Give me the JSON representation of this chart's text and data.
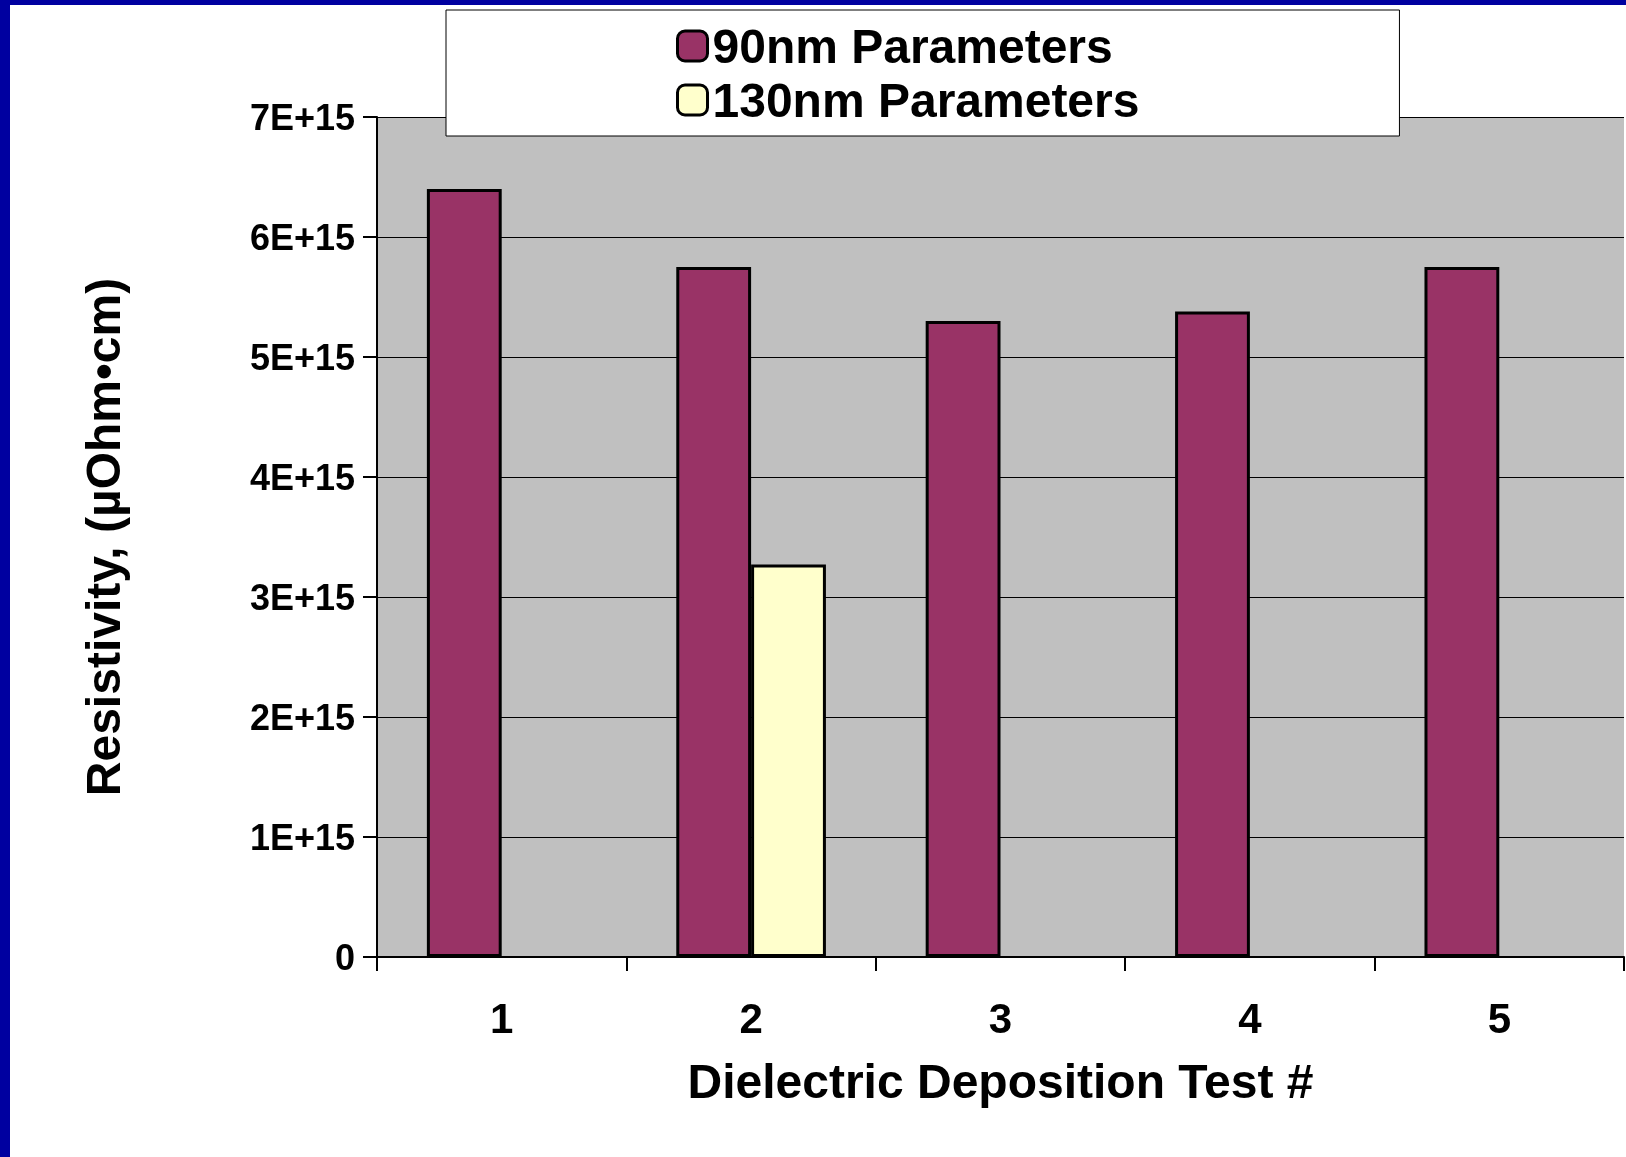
{
  "chart_data": {
    "type": "bar",
    "xlabel": "Dielectric Deposition Test #",
    "ylabel": "Resistivity, (µOhm•cm)",
    "categories": [
      "1",
      "2",
      "3",
      "4",
      "5"
    ],
    "series": [
      {
        "name": "90nm Parameters",
        "color": "#993366",
        "values": [
          6400000000000000.0,
          5750000000000000.0,
          5300000000000000.0,
          5380000000000000.0,
          5750000000000000.0
        ]
      },
      {
        "name": "130nm Parameters",
        "color": "#ffffcc",
        "values": [
          null,
          3270000000000000.0,
          null,
          null,
          null
        ]
      }
    ],
    "ylim": [
      0,
      7000000000000000.0
    ],
    "yticks": [
      0,
      {
        "value": 1000000000000000.0,
        "label": "1E+15"
      },
      {
        "value": 2000000000000000.0,
        "label": "2E+15"
      },
      {
        "value": 3000000000000000.0,
        "label": "3E+15"
      },
      {
        "value": 4000000000000000.0,
        "label": "4E+15"
      },
      {
        "value": 5000000000000000.0,
        "label": "5E+15"
      },
      {
        "value": 6000000000000000.0,
        "label": "6E+15"
      },
      {
        "value": 7000000000000000.0,
        "label": "7E+15"
      }
    ],
    "grid": "y",
    "legend": "top"
  }
}
